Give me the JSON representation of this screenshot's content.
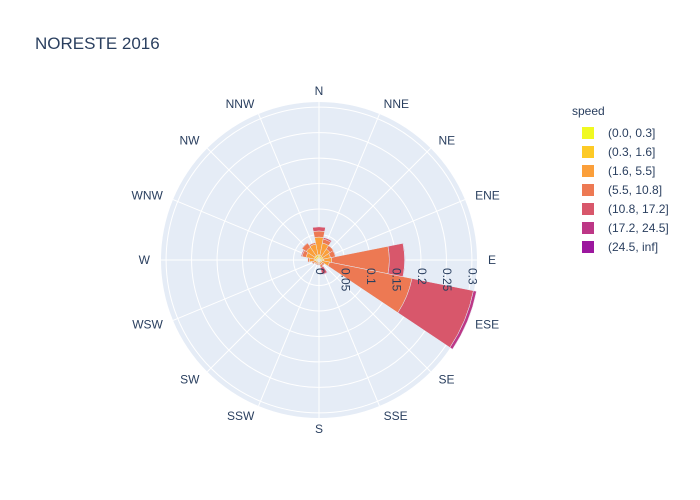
{
  "chart_data": {
    "type": "barpolar",
    "title": "NORESTE 2016",
    "legend_title": "speed",
    "legend_placement": "right",
    "directions": [
      "N",
      "NNE",
      "NE",
      "ENE",
      "E",
      "ESE",
      "SE",
      "SSE",
      "S",
      "SSW",
      "SW",
      "WSW",
      "W",
      "WNW",
      "NW",
      "NNW"
    ],
    "radial_ticks": [
      "0",
      "0.05",
      "0.1",
      "0.15",
      "0.2",
      "0.25",
      "0.3"
    ],
    "radial_range": [
      0,
      0.31
    ],
    "series": [
      {
        "name": "(0.0, 0.3]",
        "color": "#f0f921",
        "values": [
          0.002,
          0.002,
          0.002,
          0.002,
          0.002,
          0.001,
          0.001,
          0.001,
          0.001,
          0.001,
          0.001,
          0.001,
          0.002,
          0.002,
          0.002,
          0.002
        ]
      },
      {
        "name": "(0.3, 1.6]",
        "color": "#fdca26",
        "values": [
          0.008,
          0.007,
          0.006,
          0.006,
          0.007,
          0.005,
          0.003,
          0.003,
          0.003,
          0.003,
          0.003,
          0.004,
          0.006,
          0.007,
          0.008,
          0.008
        ]
      },
      {
        "name": "(1.6, 5.5]",
        "color": "#fb9f3a",
        "values": [
          0.035,
          0.025,
          0.018,
          0.015,
          0.016,
          0.015,
          0.005,
          0.005,
          0.004,
          0.004,
          0.004,
          0.006,
          0.011,
          0.017,
          0.02,
          0.022
        ]
      },
      {
        "name": "(5.5, 10.8]",
        "color": "#ed7953",
        "values": [
          0.012,
          0.008,
          0.008,
          0.01,
          0.113,
          0.165,
          0.004,
          0.006,
          0.002,
          0.002,
          0.002,
          0.003,
          0.003,
          0.008,
          0.01,
          0.003
        ]
      },
      {
        "name": "(10.8, 17.2]",
        "color": "#d8576b",
        "values": [
          0.008,
          0.003,
          0.0,
          0.001,
          0.03,
          0.123,
          0.0,
          0.014,
          0.0,
          0.0,
          0.0,
          0.0,
          0.0,
          0.002,
          0.001,
          0.0
        ]
      },
      {
        "name": "(17.2, 24.5]",
        "color": "#bd3786",
        "values": [
          0.0,
          0.0,
          0.0,
          0.0,
          0.001,
          0.006,
          0.0,
          0.001,
          0.0,
          0.0,
          0.0,
          0.0,
          0.0,
          0.0,
          0.0,
          0.0
        ]
      },
      {
        "name": "(24.5, inf]",
        "color": "#9c179e",
        "values": [
          0,
          0,
          0,
          0,
          0,
          0,
          0,
          0,
          0,
          0,
          0,
          0,
          0,
          0,
          0,
          0
        ]
      }
    ]
  }
}
